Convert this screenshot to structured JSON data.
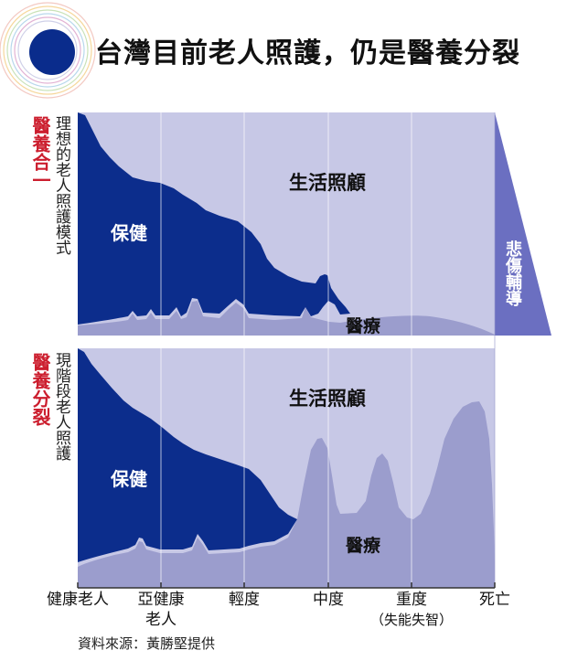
{
  "title": "台灣目前老人照護，仍是醫養分裂",
  "top_panel": {
    "red_label": "醫養合一",
    "side_label": "理想的老人照護模式",
    "care_label": "生活照顧",
    "health_label": "保健",
    "medical_label": "醫療"
  },
  "bottom_panel": {
    "red_label": "醫養分裂",
    "side_label": "現階段老人照護",
    "care_label": "生活照顧",
    "health_label": "保健",
    "medical_label": "醫療"
  },
  "grief_label": "悲傷輔導",
  "x_axis": {
    "stage_1": "健康老人",
    "stage_2_line1": "亞健康",
    "stage_2_line2": "老人",
    "stage_3": "輕度",
    "stage_4": "中度",
    "stage_5_line1": "重度",
    "stage_5_line2": "（失能失智）",
    "stage_6": "死亡"
  },
  "source": "資料來源：黃勝堅提供",
  "colors": {
    "background_band": "#c7c8e6",
    "health": "#0c2d8c",
    "medical": "#9b9dcd",
    "grief": "#6b6fc1",
    "accent_red": "#cc1e2e",
    "logo_blue": "#0a2c8c"
  }
}
